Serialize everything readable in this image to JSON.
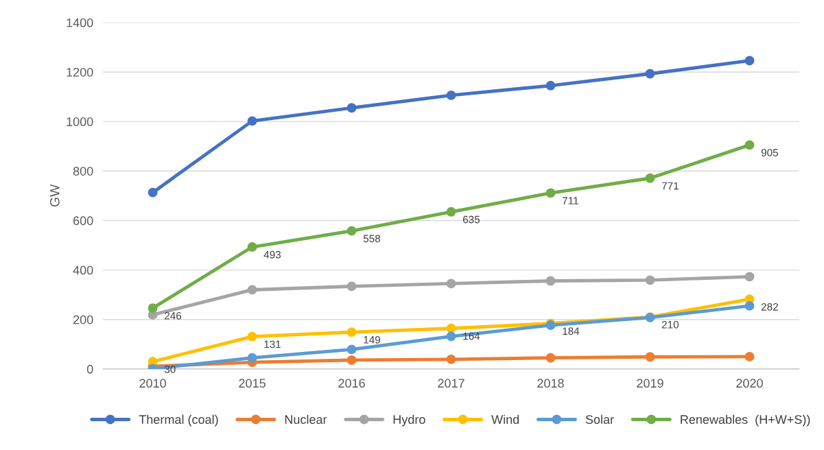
{
  "chart_data": {
    "type": "line",
    "ylabel": "GW",
    "categories": [
      "2010",
      "2015",
      "2016",
      "2017",
      "2018",
      "2019",
      "2020"
    ],
    "series": [
      {
        "name": "Thermal (coal)",
        "color": "#4472c4",
        "values": [
          713,
          1002,
          1055,
          1106,
          1145,
          1193,
          1246
        ]
      },
      {
        "name": "Nuclear",
        "color": "#ed7d31",
        "values": [
          11,
          27,
          36,
          39,
          45,
          49,
          50
        ]
      },
      {
        "name": "Hydro",
        "color": "#a5a5a5",
        "values": [
          219,
          320,
          334,
          345,
          356,
          359,
          373
        ]
      },
      {
        "name": "Wind",
        "color": "#ffc000",
        "values": [
          30,
          131,
          149,
          164,
          184,
          210,
          282
        ],
        "value_labels": [
          "30",
          "131",
          "149",
          "164",
          "184",
          "210",
          "282"
        ]
      },
      {
        "name": "Solar",
        "color": "#5b9bd5",
        "values": [
          1,
          45,
          79,
          132,
          177,
          208,
          255
        ]
      },
      {
        "name": "Renewables  (H+W+S))",
        "color": "#70ad47",
        "values": [
          246,
          493,
          558,
          635,
          711,
          771,
          905
        ],
        "value_labels": [
          "246",
          "493",
          "558",
          "635",
          "711",
          "771",
          "905"
        ]
      }
    ],
    "ylim": [
      0,
      1400
    ],
    "yticks": [
      0,
      200,
      400,
      600,
      800,
      1000,
      1200,
      1400
    ],
    "grid": "y",
    "legend": "bottom",
    "marker": "circle",
    "line_style": "solid"
  }
}
